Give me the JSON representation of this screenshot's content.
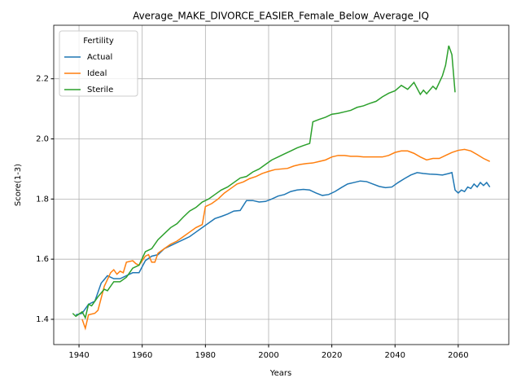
{
  "chart_data": {
    "type": "line",
    "title": "Average_MAKE_DIVORCE_EASIER_Female_Below_Average_IQ",
    "xlabel": "Years",
    "ylabel": "Score(1-3)",
    "legend_title": "Fertility",
    "legend": "upper left",
    "grid": true,
    "xlim": [
      1932,
      2076
    ],
    "ylim": [
      1.316,
      2.378
    ],
    "xticks": [
      1940,
      1960,
      1980,
      2000,
      2020,
      2040,
      2060
    ],
    "yticks": [
      1.4,
      1.6,
      1.8,
      {
        "value": 2.0,
        "label": "2.0"
      },
      2.2
    ],
    "series": [
      {
        "name": "Actual",
        "color": "#1f77b4",
        "x": [
          1939,
          1941,
          1943,
          1945,
          1947,
          1949,
          1951,
          1953,
          1955,
          1957,
          1959,
          1961,
          1963,
          1965,
          1967,
          1969,
          1971,
          1973,
          1975,
          1977,
          1979,
          1981,
          1983,
          1985,
          1987,
          1989,
          1991,
          1993,
          1995,
          1997,
          1999,
          2001,
          2003,
          2005,
          2007,
          2009,
          2011,
          2013,
          2015,
          2017,
          2019,
          2021,
          2023,
          2025,
          2027,
          2029,
          2031,
          2033,
          2035,
          2037,
          2039,
          2041,
          2043,
          2045,
          2047,
          2049,
          2051,
          2053,
          2055,
          2057,
          2058,
          2059,
          2060,
          2061,
          2062,
          2063,
          2064,
          2065,
          2066,
          2067,
          2068,
          2069,
          2070
        ],
        "values": [
          1.415,
          1.42,
          1.45,
          1.46,
          1.52,
          1.545,
          1.535,
          1.535,
          1.545,
          1.555,
          1.555,
          1.595,
          1.61,
          1.615,
          1.635,
          1.645,
          1.655,
          1.665,
          1.675,
          1.69,
          1.705,
          1.72,
          1.735,
          1.742,
          1.75,
          1.76,
          1.762,
          1.795,
          1.795,
          1.79,
          1.792,
          1.8,
          1.81,
          1.815,
          1.825,
          1.83,
          1.832,
          1.83,
          1.82,
          1.812,
          1.815,
          1.825,
          1.838,
          1.85,
          1.855,
          1.86,
          1.858,
          1.85,
          1.842,
          1.838,
          1.84,
          1.855,
          1.868,
          1.88,
          1.888,
          1.885,
          1.883,
          1.882,
          1.88,
          1.885,
          1.888,
          1.83,
          1.82,
          1.83,
          1.825,
          1.84,
          1.835,
          1.85,
          1.84,
          1.855,
          1.845,
          1.855,
          1.84
        ]
      },
      {
        "name": "Ideal",
        "color": "#ff7f0e",
        "x": [
          1941,
          1942,
          1943,
          1945,
          1946,
          1948,
          1950,
          1951,
          1952,
          1953,
          1954,
          1955,
          1957,
          1958,
          1959,
          1961,
          1962,
          1963,
          1964,
          1965,
          1967,
          1969,
          1971,
          1973,
          1975,
          1977,
          1979,
          1980,
          1982,
          1984,
          1986,
          1988,
          1990,
          1992,
          1994,
          1996,
          1998,
          2000,
          2002,
          2004,
          2006,
          2008,
          2010,
          2012,
          2014,
          2016,
          2018,
          2020,
          2022,
          2024,
          2026,
          2028,
          2030,
          2032,
          2034,
          2036,
          2038,
          2040,
          2042,
          2044,
          2046,
          2048,
          2050,
          2052,
          2054,
          2056,
          2058,
          2060,
          2062,
          2064,
          2066,
          2068,
          2070
        ],
        "values": [
          1.4,
          1.37,
          1.415,
          1.42,
          1.43,
          1.51,
          1.555,
          1.565,
          1.55,
          1.56,
          1.555,
          1.59,
          1.595,
          1.585,
          1.58,
          1.61,
          1.615,
          1.59,
          1.59,
          1.62,
          1.635,
          1.65,
          1.66,
          1.675,
          1.69,
          1.705,
          1.715,
          1.775,
          1.785,
          1.8,
          1.82,
          1.835,
          1.85,
          1.857,
          1.868,
          1.875,
          1.885,
          1.892,
          1.898,
          1.9,
          1.902,
          1.91,
          1.915,
          1.918,
          1.92,
          1.925,
          1.93,
          1.94,
          1.945,
          1.945,
          1.942,
          1.942,
          1.94,
          1.94,
          1.94,
          1.94,
          1.945,
          1.955,
          1.96,
          1.96,
          1.952,
          1.94,
          1.93,
          1.935,
          1.935,
          1.945,
          1.955,
          1.962,
          1.965,
          1.96,
          1.948,
          1.935,
          1.925
        ]
      },
      {
        "name": "Sterile",
        "color": "#2ca02c",
        "x": [
          1938,
          1939,
          1941,
          1942,
          1943,
          1944,
          1946,
          1948,
          1949,
          1951,
          1953,
          1955,
          1957,
          1959,
          1961,
          1963,
          1965,
          1967,
          1969,
          1971,
          1973,
          1975,
          1977,
          1979,
          1981,
          1983,
          1985,
          1987,
          1989,
          1991,
          1993,
          1995,
          1997,
          1999,
          2001,
          2003,
          2005,
          2007,
          2009,
          2011,
          2013,
          2014,
          2016,
          2018,
          2020,
          2022,
          2024,
          2026,
          2028,
          2030,
          2032,
          2034,
          2036,
          2038,
          2040,
          2042,
          2044,
          2046,
          2048,
          2049,
          2050,
          2052,
          2053,
          2055,
          2056,
          2057,
          2058,
          2059
        ],
        "values": [
          1.42,
          1.41,
          1.425,
          1.405,
          1.45,
          1.445,
          1.475,
          1.5,
          1.495,
          1.525,
          1.525,
          1.54,
          1.57,
          1.58,
          1.625,
          1.635,
          1.665,
          1.685,
          1.705,
          1.718,
          1.74,
          1.76,
          1.772,
          1.79,
          1.8,
          1.815,
          1.83,
          1.84,
          1.855,
          1.87,
          1.875,
          1.89,
          1.9,
          1.915,
          1.93,
          1.94,
          1.95,
          1.96,
          1.97,
          1.978,
          1.985,
          2.057,
          2.065,
          2.072,
          2.082,
          2.085,
          2.09,
          2.095,
          2.105,
          2.11,
          2.118,
          2.125,
          2.14,
          2.152,
          2.16,
          2.178,
          2.165,
          2.188,
          2.148,
          2.162,
          2.15,
          2.175,
          2.165,
          2.21,
          2.245,
          2.31,
          2.28,
          2.155
        ]
      }
    ]
  }
}
